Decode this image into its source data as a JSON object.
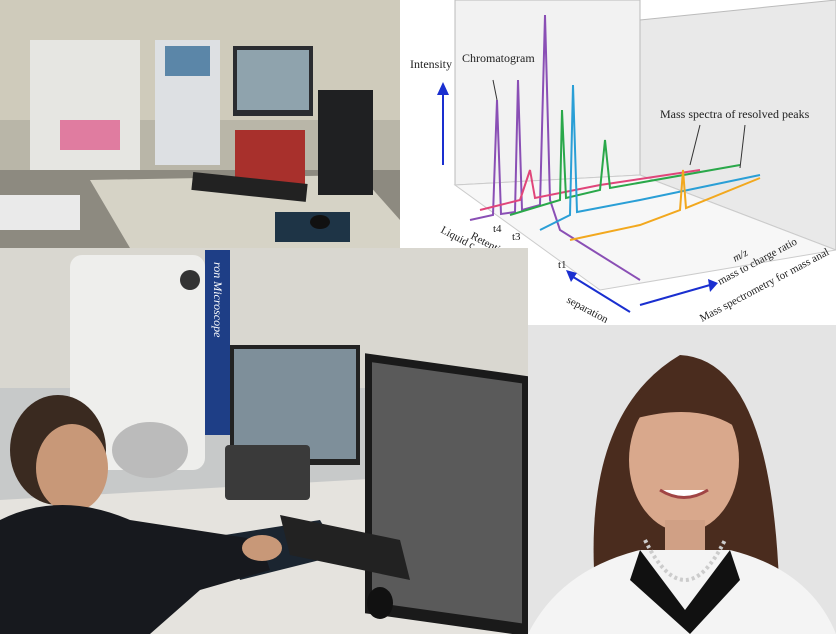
{
  "diagram": {
    "intensity": "Intensity",
    "chromatogram": "Chromatogram",
    "mass_spectra": "Mass spectra of resolved peaks",
    "times": [
      "t4",
      "t3",
      "t1"
    ],
    "retention": "Retention",
    "liquid": "Liquid c",
    "mz": "m/z",
    "mass_ratio": "mass to charge ratio",
    "ms": "Mass spectrometry for mass anal",
    "separation": "separation"
  },
  "microscope_label": "ron Microscope"
}
